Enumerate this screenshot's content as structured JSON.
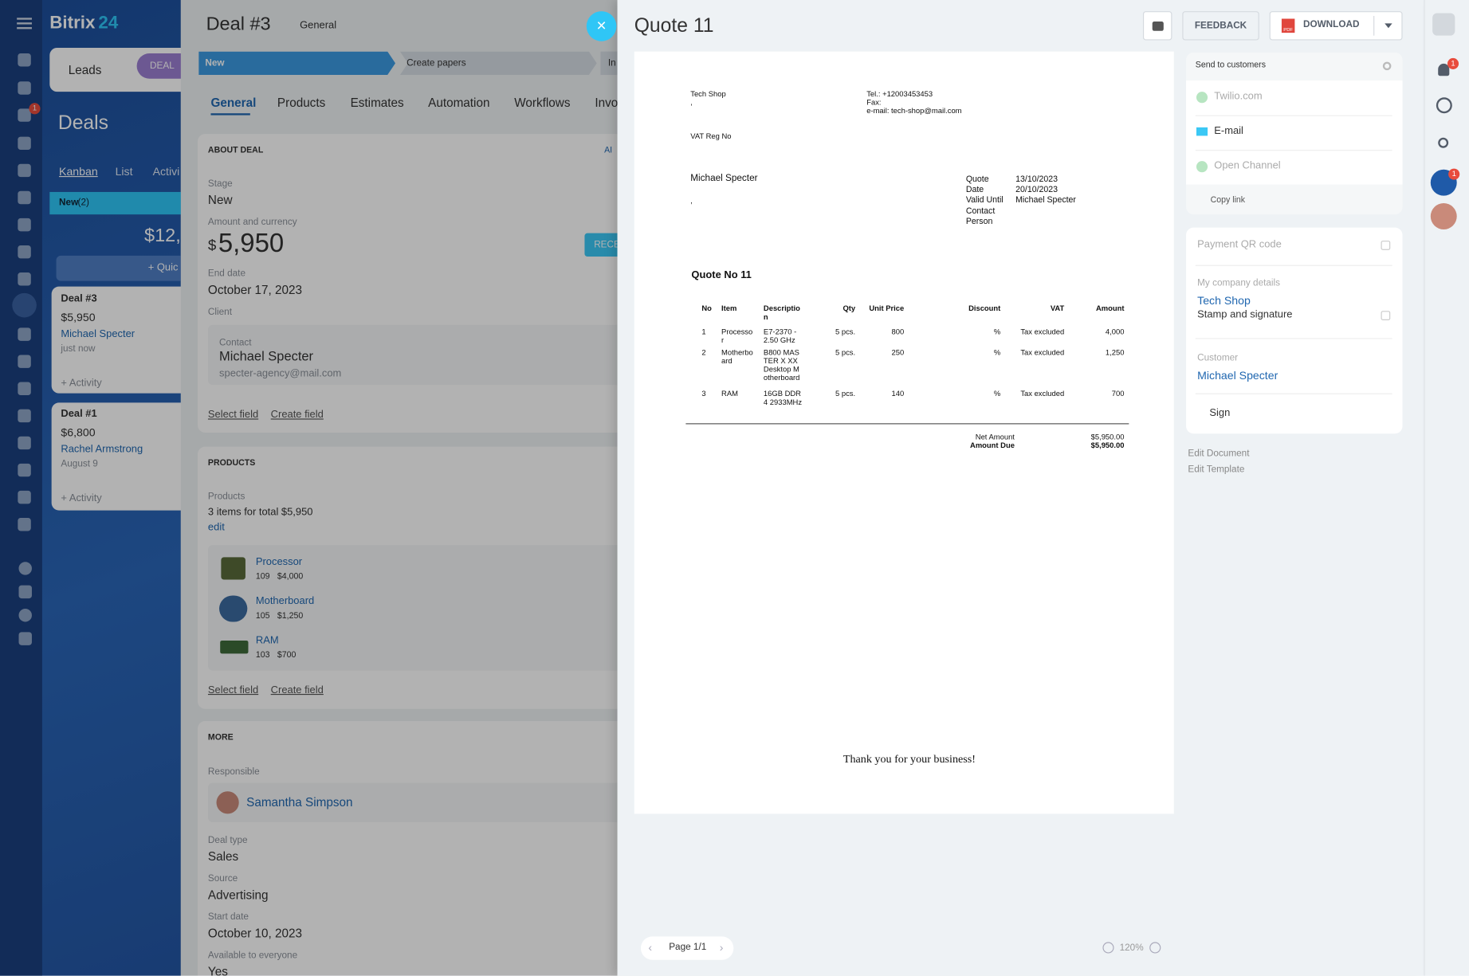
{
  "sidebar": {
    "logo": "Bitrix",
    "logo_suffix": "24",
    "badge": "1"
  },
  "crm": {
    "tabs": [
      "Leads",
      "DEAL"
    ],
    "title": "Deals",
    "views": [
      "Kanban",
      "List",
      "Activi"
    ],
    "column": {
      "name": "New",
      "count": "(2)",
      "total": "$12,",
      "add": "+ Quic"
    },
    "cards": [
      {
        "title": "Deal #3",
        "amount": "$5,950",
        "contact": "Michael Specter",
        "time": "just now",
        "activity": "+ Activity"
      },
      {
        "title": "Deal #1",
        "amount": "$6,800",
        "contact": "Rachel Armstrong",
        "time": "August 9",
        "activity": "+ Activity"
      }
    ]
  },
  "deal": {
    "title": "Deal #3",
    "category": "General",
    "stages": [
      "New",
      "Create papers",
      "In"
    ],
    "tabs": [
      "General",
      "Products",
      "Estimates",
      "Automation",
      "Workflows",
      "Invoi"
    ],
    "about": {
      "heading": "ABOUT DEAL",
      "ai": "AI",
      "stage_label": "Stage",
      "stage": "New",
      "amount_label": "Amount and currency",
      "currency": "$",
      "amount": "5,950",
      "receive": "RECE",
      "end_label": "End date",
      "end": "October 17, 2023",
      "client_label": "Client",
      "contact_label": "Contact",
      "contact": "Michael Specter",
      "email": "specter-agency@mail.com",
      "select": "Select field",
      "create": "Create field"
    },
    "products": {
      "heading": "PRODUCTS",
      "label": "Products",
      "summary": "3 items for total $5,950",
      "edit": "edit",
      "items": [
        {
          "name": "Processor",
          "code": "109",
          "price": "$4,000"
        },
        {
          "name": "Motherboard",
          "code": "105",
          "price": "$1,250"
        },
        {
          "name": "RAM",
          "code": "103",
          "price": "$700"
        }
      ],
      "select": "Select field",
      "create": "Create field"
    },
    "more": {
      "heading": "MORE",
      "responsible_label": "Responsible",
      "responsible": "Samantha Simpson",
      "fields": [
        {
          "label": "Deal type",
          "value": "Sales"
        },
        {
          "label": "Source",
          "value": "Advertising"
        },
        {
          "label": "Start date",
          "value": "October 10, 2023"
        },
        {
          "label": "Available to everyone",
          "value": "Yes"
        }
      ]
    }
  },
  "quote": {
    "title": "Quote 11",
    "feedback": "FEEDBACK",
    "download": "DOWNLOAD",
    "pdf": "PDF",
    "document": {
      "seller": "Tech Shop",
      "seller_address": ",",
      "contacts": [
        "Tel.: +12003453453",
        "Fax:",
        "e-mail: tech-shop@mail.com"
      ],
      "vat": "VAT Reg No",
      "buyer": "Michael Specter",
      "buyer_address": ",",
      "meta_labels": [
        "Quote",
        "Date",
        "Valid Until",
        "Contact Person"
      ],
      "meta_values": [
        "13/10/2023",
        "20/10/2023",
        "Michael Specter"
      ],
      "heading": "Quote No 11",
      "columns": [
        "No",
        "Item",
        "Description",
        "Qty",
        "Unit Price",
        "Discount",
        "VAT",
        "Amount"
      ],
      "rows": [
        [
          "1",
          "Processor",
          "E7-2370 - 2.50 GHz",
          "5 pcs.",
          "800",
          "%",
          "Tax excluded",
          "4,000"
        ],
        [
          "2",
          "Motherboard",
          "B800 MASTER X XX Desktop Motherboard",
          "5 pcs.",
          "250",
          "%",
          "Tax excluded",
          "1,250"
        ],
        [
          "3",
          "RAM",
          "16GB DDR4 2933MHz",
          "5 pcs.",
          "140",
          "%",
          "Tax excluded",
          "700"
        ]
      ],
      "totals": [
        {
          "label": "Net Amount",
          "value": "$5,950.00"
        },
        {
          "label": "Amount Due",
          "value": "$5,950.00"
        }
      ],
      "thanks": "Thank you for your business!"
    },
    "pager": {
      "page": "Page 1/1",
      "zoom": "120%"
    },
    "send": {
      "heading": "Send to customers",
      "channels": [
        "Twilio.com",
        "E-mail",
        "Open Channel"
      ],
      "copy": "Copy link"
    },
    "settings": {
      "qr": "Payment QR code",
      "company_label": "My company details",
      "company": "Tech Shop",
      "stamp": "Stamp and signature",
      "customer_label": "Customer",
      "customer": "Michael Specter",
      "sign": "Sign",
      "edit_document": "Edit Document",
      "edit_template": "Edit Template"
    }
  },
  "right_bar": {
    "badges": [
      "1",
      "1"
    ]
  }
}
